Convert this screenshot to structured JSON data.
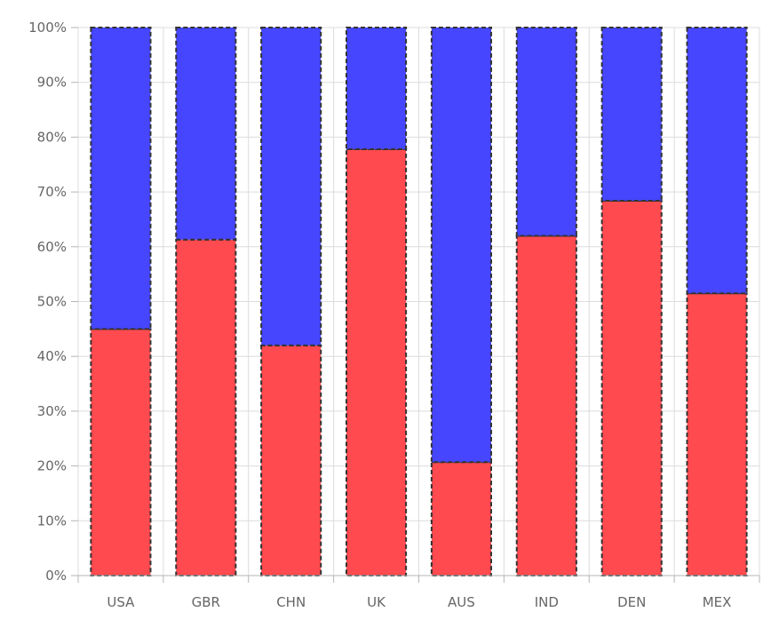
{
  "chart_data": {
    "type": "bar",
    "stacked": "percent",
    "categories": [
      "USA",
      "GBR",
      "CHN",
      "UK",
      "AUS",
      "IND",
      "DEN",
      "MEX"
    ],
    "series": [
      {
        "values": [
          45,
          61.3,
          42,
          77.8,
          20.7,
          62,
          68.4,
          51.5
        ],
        "color": "#ff4a4f"
      },
      {
        "values": [
          55,
          38.7,
          58,
          22.2,
          79.3,
          38,
          31.6,
          48.5
        ],
        "color": "#4646ff"
      }
    ],
    "ylim": [
      0,
      100
    ],
    "y_ticks": [
      {
        "value": 0,
        "label": "0%"
      },
      {
        "value": 10,
        "label": "10%"
      },
      {
        "value": 20,
        "label": "20%"
      },
      {
        "value": 30,
        "label": "30%"
      },
      {
        "value": 40,
        "label": "40%"
      },
      {
        "value": 50,
        "label": "50%"
      },
      {
        "value": 60,
        "label": "60%"
      },
      {
        "value": 70,
        "label": "70%"
      },
      {
        "value": 80,
        "label": "80%"
      },
      {
        "value": 90,
        "label": "90%"
      },
      {
        "value": 100,
        "label": "100%"
      }
    ],
    "xlabel": "",
    "ylabel": "",
    "grid": true,
    "bar_border": "dashed",
    "bar_border_color": "#333333"
  }
}
